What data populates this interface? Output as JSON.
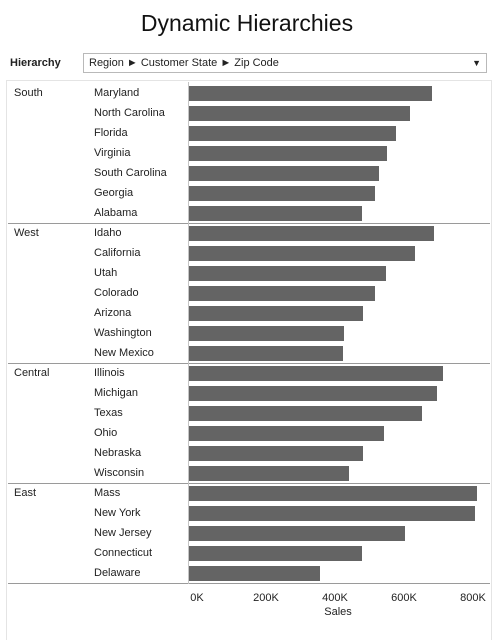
{
  "title": "Dynamic Hierarchies",
  "hierarchy": {
    "label": "Hierarchy",
    "value": "Region ► Customer State ► Zip Code"
  },
  "chart_data": {
    "type": "bar",
    "orientation": "horizontal",
    "xlabel": "Sales",
    "xlim": [
      0,
      860000
    ],
    "xticks": [
      "0K",
      "200K",
      "400K",
      "600K",
      "800K"
    ],
    "grid": false,
    "groups": [
      {
        "name": "South",
        "categories": [
          "Maryland",
          "North Carolina",
          "Florida",
          "Virginia",
          "South Carolina",
          "Georgia",
          "Alabama"
        ],
        "values": [
          705000,
          640000,
          600000,
          575000,
          550000,
          540000,
          500000
        ]
      },
      {
        "name": "West",
        "categories": [
          "Idaho",
          "California",
          "Utah",
          "Colorado",
          "Arizona",
          "Washington",
          "New Mexico"
        ],
        "values": [
          710000,
          655000,
          570000,
          540000,
          505000,
          450000,
          445000
        ]
      },
      {
        "name": "Central",
        "categories": [
          "Illinois",
          "Michigan",
          "Texas",
          "Ohio",
          "Nebraska",
          "Wisconsin"
        ],
        "values": [
          735000,
          720000,
          675000,
          565000,
          505000,
          465000
        ]
      },
      {
        "name": "East",
        "categories": [
          "Mass",
          "New York",
          "New Jersey",
          "Connecticut",
          "Delaware"
        ],
        "values": [
          835000,
          830000,
          625000,
          500000,
          380000
        ]
      }
    ],
    "bar_color": "#646464"
  }
}
